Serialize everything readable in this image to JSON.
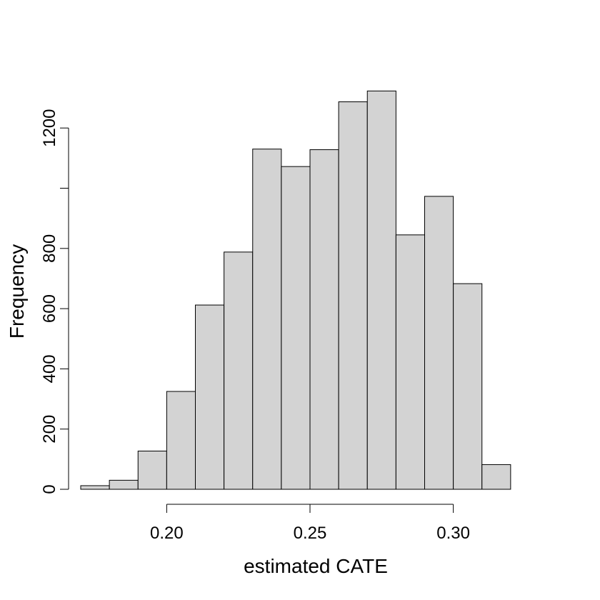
{
  "chart_data": {
    "type": "bar",
    "subtype": "histogram",
    "title": "",
    "xlabel": "estimated CATE",
    "ylabel": "Frequency",
    "bin_edges": [
      0.17,
      0.18,
      0.19,
      0.2,
      0.21,
      0.22,
      0.23,
      0.24,
      0.25,
      0.26,
      0.27,
      0.28,
      0.29,
      0.3,
      0.31,
      0.32
    ],
    "values": [
      12,
      30,
      127,
      325,
      612,
      788,
      1130,
      1072,
      1128,
      1287,
      1323,
      845,
      973,
      683,
      82
    ],
    "xlim": [
      0.17,
      0.33
    ],
    "ylim": [
      0,
      1350
    ],
    "x_ticks": [
      0.2,
      0.25,
      0.3
    ],
    "x_tick_labels": [
      "0.20",
      "0.25",
      "0.30"
    ],
    "y_ticks": [
      0,
      200,
      400,
      600,
      800,
      1000,
      1200
    ],
    "y_tick_labels": [
      "0",
      "200",
      "400",
      "600",
      "800",
      "",
      "1200"
    ],
    "bar_color": "#d3d3d3",
    "edge_color": "#000000",
    "grid": false
  }
}
